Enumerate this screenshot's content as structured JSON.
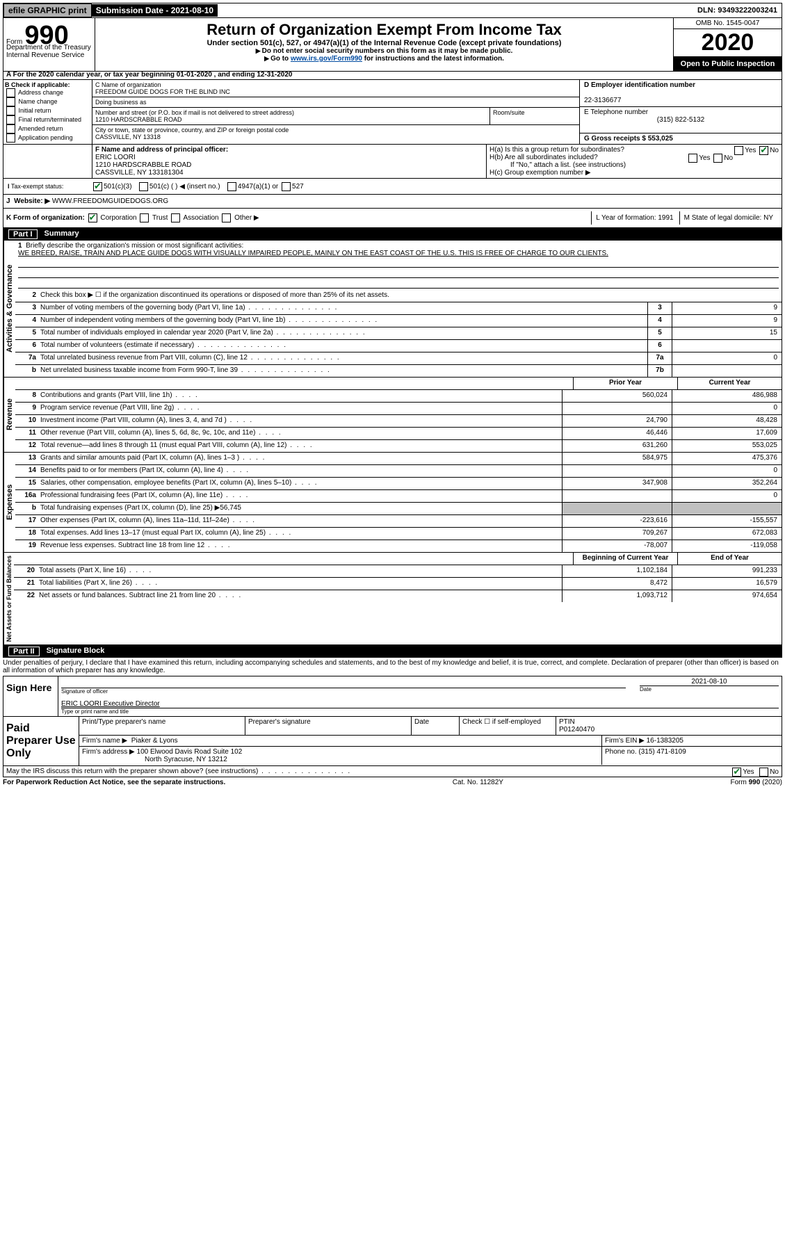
{
  "topbar": {
    "efile": "efile GRAPHIC print",
    "submission": "Submission Date - 2021-08-10",
    "dln": "DLN: 93493222003241"
  },
  "header": {
    "form_prefix": "Form",
    "form_num": "990",
    "title": "Return of Organization Exempt From Income Tax",
    "subtitle": "Under section 501(c), 527, or 4947(a)(1) of the Internal Revenue Code (except private foundations)",
    "note1": "Do not enter social security numbers on this form as it may be made public.",
    "note2_a": "Go to ",
    "note2_link": "www.irs.gov/Form990",
    "note2_b": " for instructions and the latest information.",
    "omb": "OMB No. 1545-0047",
    "year": "2020",
    "open": "Open to Public Inspection",
    "dept": "Department of the Treasury\nInternal Revenue Service"
  },
  "a_row": "For the 2020 calendar year, or tax year beginning 01-01-2020   , and ending 12-31-2020",
  "b": {
    "label": "B Check if applicable:",
    "opts": [
      "Address change",
      "Name change",
      "Initial return",
      "Final return/terminated",
      "Amended return",
      "Application pending"
    ]
  },
  "c": {
    "name_label": "C Name of organization",
    "name": "FREEDOM GUIDE DOGS FOR THE BLIND INC",
    "dba_label": "Doing business as",
    "addr_label": "Number and street (or P.O. box if mail is not delivered to street address)",
    "addr": "1210 HARDSCRABBLE ROAD",
    "room_label": "Room/suite",
    "city_label": "City or town, state or province, country, and ZIP or foreign postal code",
    "city": "CASSVILLE, NY  13318"
  },
  "d": {
    "label": "D Employer identification number",
    "ein": "22-3136677"
  },
  "e": {
    "label": "E Telephone number",
    "phone": "(315) 822-5132"
  },
  "g": {
    "label": "G Gross receipts $ 553,025"
  },
  "f": {
    "label": "F  Name and address of principal officer:",
    "name": "ERIC LOORI",
    "addr1": "1210 HARDSCRABBLE ROAD",
    "addr2": "CASSVILLE, NY  133181304"
  },
  "h": {
    "a": "H(a)  Is this a group return for subordinates?",
    "b": "H(b)  Are all subordinates included?",
    "b_note": "If \"No,\" attach a list. (see instructions)",
    "c": "H(c)  Group exemption number ▶"
  },
  "i": {
    "label": "Tax-exempt status:",
    "opts": [
      "501(c)(3)",
      "501(c) (  ) ◀ (insert no.)",
      "4947(a)(1) or",
      "527"
    ]
  },
  "j": {
    "label": "Website: ▶",
    "url": "WWW.FREEDOMGUIDEDOGS.ORG"
  },
  "k": {
    "label": "K Form of organization:",
    "opts": [
      "Corporation",
      "Trust",
      "Association",
      "Other ▶"
    ]
  },
  "l": {
    "label": "L Year of formation: 1991"
  },
  "m": {
    "label": "M State of legal domicile: NY"
  },
  "part1": {
    "num": "Part I",
    "title": "Summary"
  },
  "mission": {
    "num": "1",
    "label": "Briefly describe the organization's mission or most significant activities:",
    "text": "WE BREED, RAISE, TRAIN AND PLACE GUIDE DOGS WITH VISUALLY IMPAIRED PEOPLE, MAINLY ON THE EAST COAST OF THE U.S. THIS IS FREE OF CHARGE TO OUR CLIENTS."
  },
  "gov_lines": [
    {
      "n": "2",
      "d": "Check this box ▶ ☐  if the organization discontinued its operations or disposed of more than 25% of its net assets."
    },
    {
      "n": "3",
      "d": "Number of voting members of the governing body (Part VI, line 1a)",
      "box": "3",
      "v": "9"
    },
    {
      "n": "4",
      "d": "Number of independent voting members of the governing body (Part VI, line 1b)",
      "box": "4",
      "v": "9"
    },
    {
      "n": "5",
      "d": "Total number of individuals employed in calendar year 2020 (Part V, line 2a)",
      "box": "5",
      "v": "15"
    },
    {
      "n": "6",
      "d": "Total number of volunteers (estimate if necessary)",
      "box": "6",
      "v": ""
    },
    {
      "n": "7a",
      "d": "Total unrelated business revenue from Part VIII, column (C), line 12",
      "box": "7a",
      "v": "0"
    },
    {
      "n": "b",
      "d": "Net unrelated business taxable income from Form 990-T, line 39",
      "box": "7b",
      "v": ""
    }
  ],
  "rev_header": {
    "py": "Prior Year",
    "cy": "Current Year"
  },
  "rev_lines": [
    {
      "n": "8",
      "d": "Contributions and grants (Part VIII, line 1h)",
      "py": "560,024",
      "cy": "486,988"
    },
    {
      "n": "9",
      "d": "Program service revenue (Part VIII, line 2g)",
      "py": "",
      "cy": "0"
    },
    {
      "n": "10",
      "d": "Investment income (Part VIII, column (A), lines 3, 4, and 7d )",
      "py": "24,790",
      "cy": "48,428"
    },
    {
      "n": "11",
      "d": "Other revenue (Part VIII, column (A), lines 5, 6d, 8c, 9c, 10c, and 11e)",
      "py": "46,446",
      "cy": "17,609"
    },
    {
      "n": "12",
      "d": "Total revenue—add lines 8 through 11 (must equal Part VIII, column (A), line 12)",
      "py": "631,260",
      "cy": "553,025"
    }
  ],
  "exp_lines": [
    {
      "n": "13",
      "d": "Grants and similar amounts paid (Part IX, column (A), lines 1–3 )",
      "py": "584,975",
      "cy": "475,376"
    },
    {
      "n": "14",
      "d": "Benefits paid to or for members (Part IX, column (A), line 4)",
      "py": "",
      "cy": "0"
    },
    {
      "n": "15",
      "d": "Salaries, other compensation, employee benefits (Part IX, column (A), lines 5–10)",
      "py": "347,908",
      "cy": "352,264"
    },
    {
      "n": "16a",
      "d": "Professional fundraising fees (Part IX, column (A), line 11e)",
      "py": "",
      "cy": "0"
    },
    {
      "n": "b",
      "d": "Total fundraising expenses (Part IX, column (D), line 25) ▶56,745",
      "shaded": true
    },
    {
      "n": "17",
      "d": "Other expenses (Part IX, column (A), lines 11a–11d, 11f–24e)",
      "py": "-223,616",
      "cy": "-155,557"
    },
    {
      "n": "18",
      "d": "Total expenses. Add lines 13–17 (must equal Part IX, column (A), line 25)",
      "py": "709,267",
      "cy": "672,083"
    },
    {
      "n": "19",
      "d": "Revenue less expenses. Subtract line 18 from line 12",
      "py": "-78,007",
      "cy": "-119,058"
    }
  ],
  "na_header": {
    "py": "Beginning of Current Year",
    "cy": "End of Year"
  },
  "na_lines": [
    {
      "n": "20",
      "d": "Total assets (Part X, line 16)",
      "py": "1,102,184",
      "cy": "991,233"
    },
    {
      "n": "21",
      "d": "Total liabilities (Part X, line 26)",
      "py": "8,472",
      "cy": "16,579"
    },
    {
      "n": "22",
      "d": "Net assets or fund balances. Subtract line 21 from line 20",
      "py": "1,093,712",
      "cy": "974,654"
    }
  ],
  "part2": {
    "num": "Part II",
    "title": "Signature Block"
  },
  "declaration": "Under penalties of perjury, I declare that I have examined this return, including accompanying schedules and statements, and to the best of my knowledge and belief, it is true, correct, and complete. Declaration of preparer (other than officer) is based on all information of which preparer has any knowledge.",
  "sign": {
    "label": "Sign Here",
    "sig_label": "Signature of officer",
    "date_label": "Date",
    "date": "2021-08-10",
    "name": "ERIC LOORI  Executive Director",
    "name_label": "Type or print name and title"
  },
  "paid": {
    "label": "Paid Preparer Use Only",
    "h1": "Print/Type preparer's name",
    "h2": "Preparer's signature",
    "h3": "Date",
    "h4": "Check ☐ if self-employed",
    "ptin_label": "PTIN",
    "ptin": "P01240470",
    "firm_label": "Firm's name    ▶",
    "firm": "Piaker & Lyons",
    "ein_label": "Firm's EIN ▶",
    "ein": "16-1383205",
    "addr_label": "Firm's address ▶",
    "addr1": "100 Elwood Davis Road Suite 102",
    "addr2": "North Syracuse, NY  13212",
    "phone_label": "Phone no.",
    "phone": "(315) 471-8109"
  },
  "discuss": "May the IRS discuss this return with the preparer shown above? (see instructions)",
  "footer": {
    "left": "For Paperwork Reduction Act Notice, see the separate instructions.",
    "mid": "Cat. No. 11282Y",
    "right": "Form 990 (2020)"
  },
  "labels": {
    "activities": "Activities & Governance",
    "revenue": "Revenue",
    "expenses": "Expenses",
    "netassets": "Net Assets or Fund Balances",
    "yes": "Yes",
    "no": "No"
  }
}
